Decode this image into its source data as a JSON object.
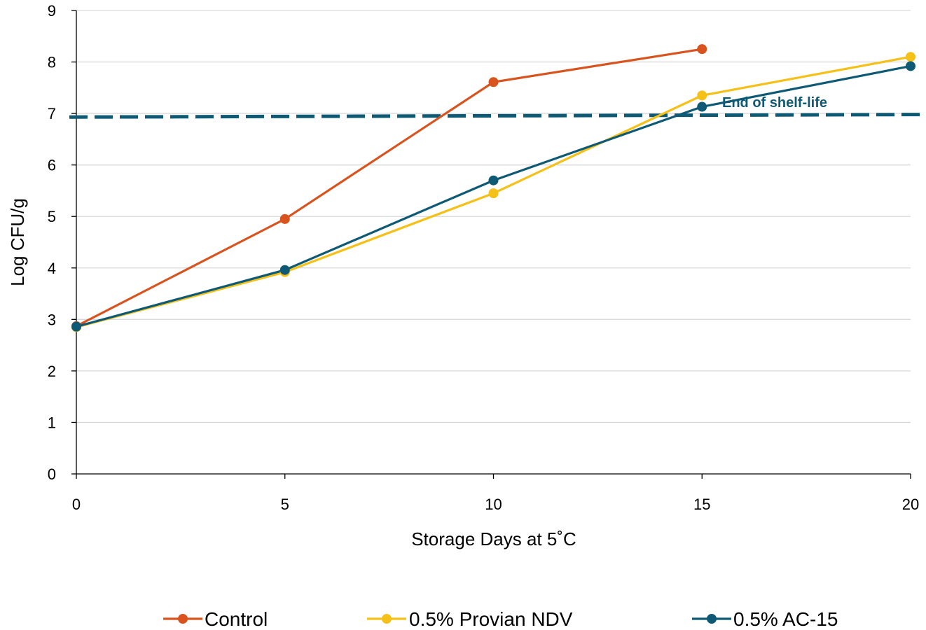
{
  "chart_data": {
    "type": "line",
    "title": "",
    "xlabel": "Storage Days at 5˚C",
    "ylabel": "Log CFU/g",
    "xlim": [
      0,
      20
    ],
    "ylim": [
      0,
      9
    ],
    "x_ticks": [
      0,
      5,
      10,
      15,
      20
    ],
    "y_ticks": [
      0,
      1,
      2,
      3,
      4,
      5,
      6,
      7,
      8,
      9
    ],
    "grid": "horizontal",
    "legend_position": "bottom",
    "series": [
      {
        "name": "Control",
        "color": "#D9531E",
        "x": [
          0,
          5,
          10,
          15
        ],
        "values": [
          2.87,
          4.95,
          7.61,
          8.25
        ]
      },
      {
        "name": "0.5% Provian NDV",
        "color": "#F5C017",
        "x": [
          0,
          5,
          10,
          15,
          20
        ],
        "values": [
          2.85,
          3.92,
          5.45,
          7.35,
          8.1
        ]
      },
      {
        "name": "0.5% AC-15",
        "color": "#0E5A74",
        "x": [
          0,
          5,
          10,
          15,
          20
        ],
        "values": [
          2.86,
          3.96,
          5.7,
          7.13,
          7.92
        ]
      }
    ],
    "reference_line": {
      "label": "End of shelf-life",
      "y_start": 6.93,
      "y_end": 6.98,
      "color": "#0E5A74"
    }
  }
}
